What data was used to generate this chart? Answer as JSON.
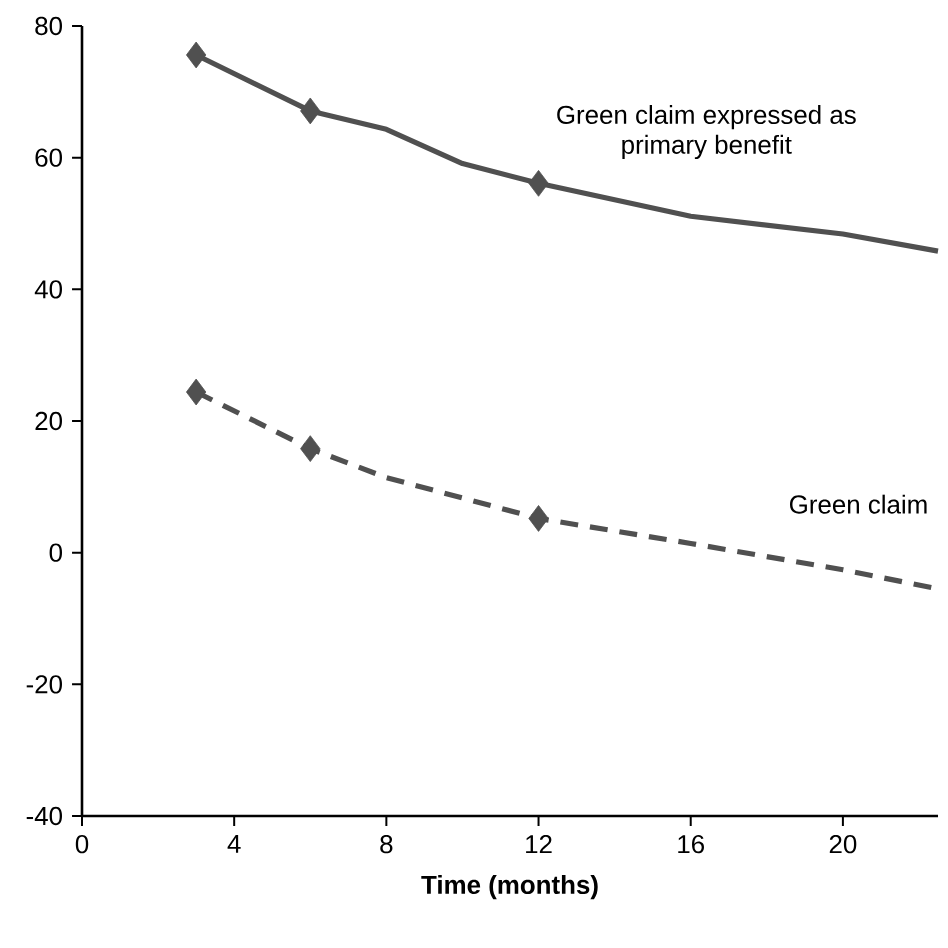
{
  "chart_data": {
    "type": "line",
    "xlabel": "Time (months)",
    "xlim": [
      0,
      22.5
    ],
    "xticks": [
      0,
      4,
      8,
      12,
      16,
      20
    ],
    "ylim": [
      -40,
      80
    ],
    "yticks": [
      -40,
      -20,
      0,
      20,
      40,
      60,
      80
    ],
    "series": [
      {
        "name": "Green claim expressed as primary benefit",
        "color": "#505050",
        "line_style": "solid",
        "marker": "none",
        "x": [
          3,
          6,
          8,
          10,
          12,
          16,
          20,
          22.5
        ],
        "values": [
          75.6,
          67.1,
          64.3,
          59.1,
          56.1,
          51.1,
          48.4,
          45.8
        ]
      },
      {
        "type": "scatter",
        "color": "#505050",
        "marker": "diamond",
        "x": [
          3,
          6,
          12
        ],
        "values": [
          75.6,
          67.1,
          56.1
        ]
      },
      {
        "name": "Green claim",
        "color": "#505050",
        "line_style": "dashed",
        "marker": "none",
        "x": [
          3,
          6,
          8,
          12,
          16,
          20,
          22.5
        ],
        "values": [
          24.4,
          15.8,
          11.4,
          5.2,
          1.4,
          -2.6,
          -5.5
        ]
      },
      {
        "type": "scatter",
        "color": "#505050",
        "marker": "diamond",
        "x": [
          3,
          6,
          12
        ],
        "values": [
          24.4,
          15.8,
          5.2
        ]
      }
    ]
  }
}
